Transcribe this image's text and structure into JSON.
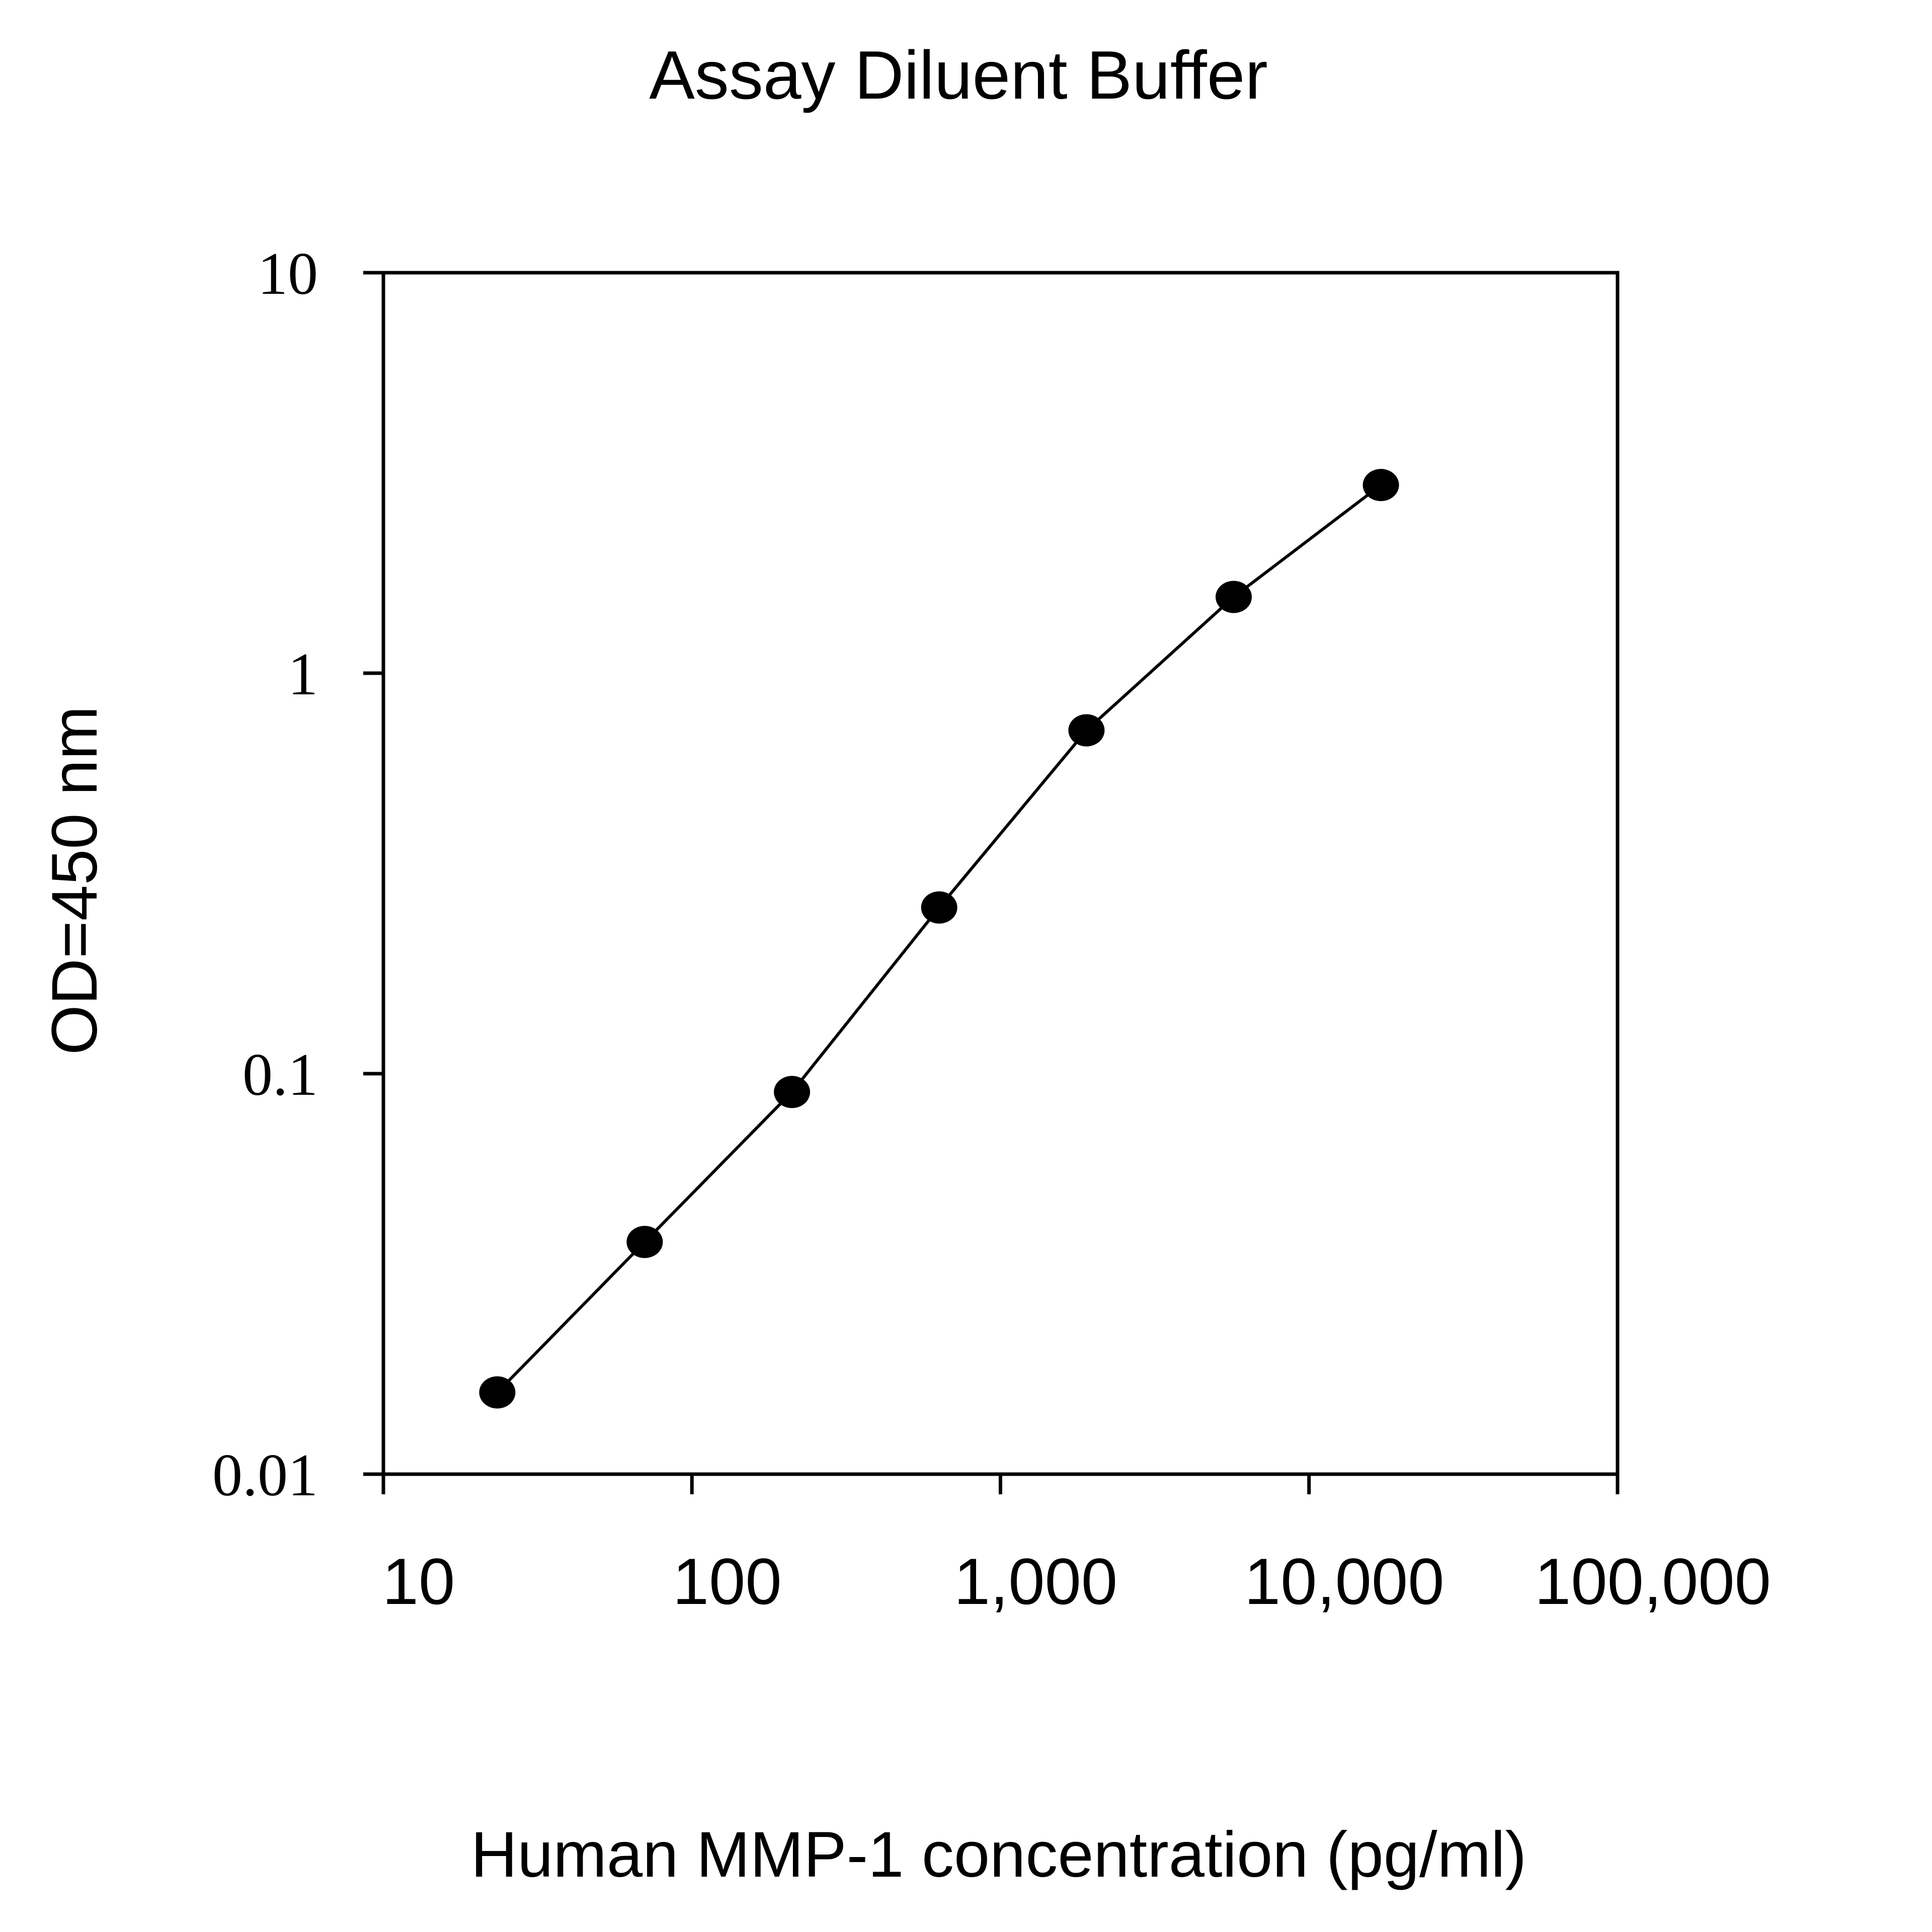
{
  "chart_data": {
    "type": "line",
    "title": "Assay Diluent Buffer",
    "xlabel": "Human MMP-1 concentration (pg/ml)",
    "ylabel": "OD=450 nm",
    "x_scale": "log",
    "y_scale": "log",
    "xlim": [
      10,
      100000
    ],
    "ylim": [
      0.01,
      10
    ],
    "x_ticks": [
      "10",
      "100",
      "1,000",
      "10,000",
      "100,000"
    ],
    "y_ticks": [
      "10",
      "1",
      "0.1",
      "0.01"
    ],
    "grid": false,
    "legend": "none",
    "series": [
      {
        "x": [
          23.4,
          70.3,
          211,
          633,
          1900,
          5700,
          17100
        ],
        "y": [
          0.016,
          0.038,
          0.09,
          0.26,
          0.72,
          1.55,
          2.95
        ],
        "color": "#000000",
        "marker": "circle"
      }
    ]
  }
}
